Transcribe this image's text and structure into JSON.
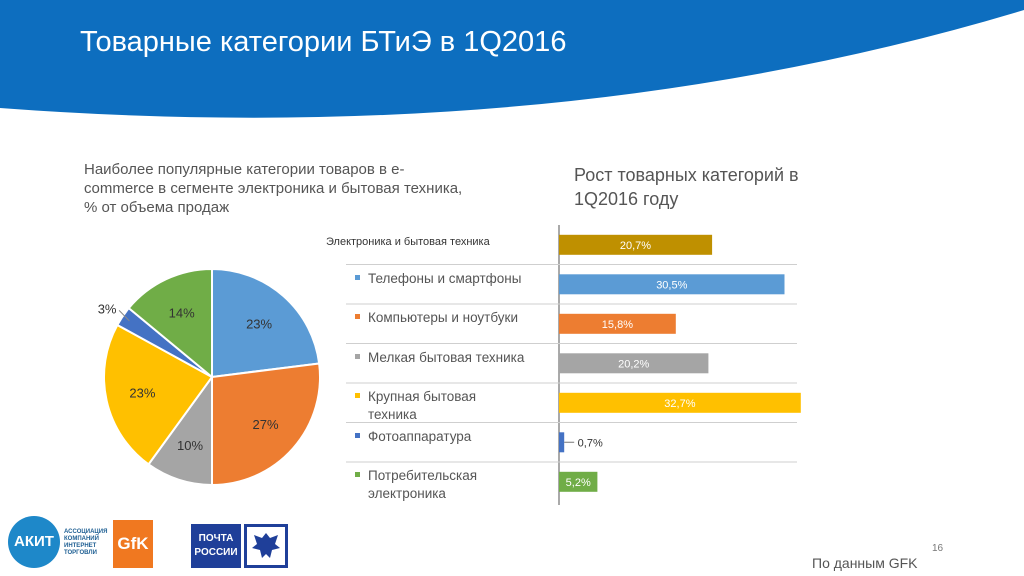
{
  "slide": {
    "title": "Товарные категории БТиЭ в 1Q2016",
    "source": "По данным GFK",
    "page_number": "16"
  },
  "colors": {
    "banner": "#0d6ebf",
    "blue": "#5b9bd5",
    "orange": "#ed7d31",
    "gray": "#a5a5a5",
    "yellow": "#ffc000",
    "darkblue": "#4472c4",
    "green": "#70ad47",
    "gold": "#bf9000"
  },
  "logos": {
    "akit": {
      "main": "АКИТ",
      "sub": "АССОЦИАЦИЯ КОМПАНИЙ ИНТЕРНЕТ ТОРГОВЛИ"
    },
    "gfk": "GfK",
    "pochta": [
      "ПОЧТА",
      "РОССИИ"
    ]
  },
  "chart_data": [
    {
      "type": "pie",
      "title": "Наиболее популярные категории товаров в e-commerce в сегменте электроника и бытовая техника, % от объема продаж",
      "slices": [
        {
          "label": "Телефоны и смартфоны",
          "value": 23,
          "display": "23%",
          "color": "#5b9bd5"
        },
        {
          "label": "Компьютеры и ноутбуки",
          "value": 27,
          "display": "27%",
          "color": "#ed7d31"
        },
        {
          "label": "Мелкая бытовая техника",
          "value": 10,
          "display": "10%",
          "color": "#a5a5a5"
        },
        {
          "label": "Крупная бытовая техника",
          "value": 23,
          "display": "23%",
          "color": "#ffc000"
        },
        {
          "label": "Фотоаппаратура",
          "value": 3,
          "display": "3%",
          "color": "#4472c4"
        },
        {
          "label": "Потребительская электроника",
          "value": 14,
          "display": "14%",
          "color": "#70ad47"
        }
      ]
    },
    {
      "type": "bar",
      "orientation": "horizontal",
      "title": "Рост товарных категорий в 1Q2016 году",
      "categories": [
        "Электроника и бытовая техника",
        "Телефоны и смартфоны",
        "Компьютеры и ноутбуки",
        "Мелкая бытовая техника",
        "Крупная бытовая техника",
        "Фотоаппаратура",
        "Потребительская электроника"
      ],
      "values": [
        20.7,
        30.5,
        15.8,
        20.2,
        32.7,
        0.7,
        5.2
      ],
      "labels": [
        "20,7%",
        "30,5%",
        "15,8%",
        "20,2%",
        "32,7%",
        "0,7%",
        "5,2%"
      ],
      "colors": [
        "#bf9000",
        "#5b9bd5",
        "#ed7d31",
        "#a5a5a5",
        "#ffc000",
        "#4472c4",
        "#70ad47"
      ],
      "xlim": [
        0,
        33
      ]
    }
  ]
}
